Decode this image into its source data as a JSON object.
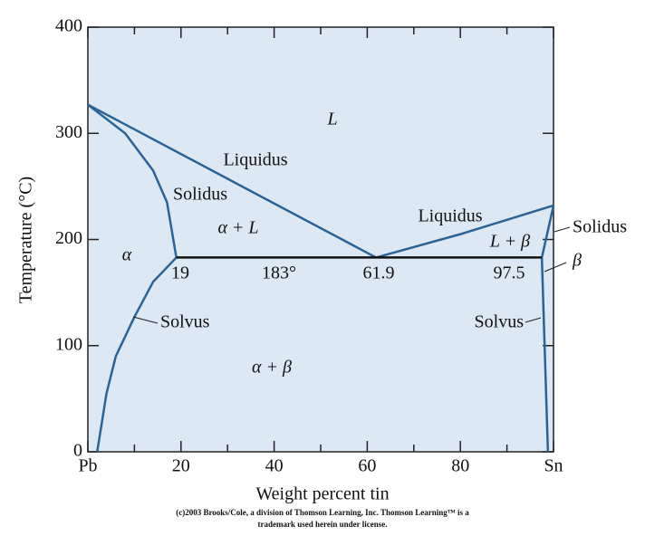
{
  "chart_data": {
    "type": "line",
    "x_label": "Weight percent tin",
    "y_label": "Temperature (°C)",
    "xlim": [
      0,
      100
    ],
    "ylim": [
      0,
      400
    ],
    "xticks": [
      {
        "value": 0,
        "label": "Pb"
      },
      20,
      40,
      60,
      80,
      {
        "value": 100,
        "label": "Sn"
      }
    ],
    "xminorticks": [
      10,
      30,
      50,
      70,
      90
    ],
    "yticks": [
      0,
      100,
      200,
      300,
      400
    ],
    "background": "#dde8f5",
    "series": [
      {
        "name": "Liquidus",
        "color": "#2a6496",
        "x": [
          0,
          61.9,
          80,
          100
        ],
        "values": [
          327,
          183,
          205,
          232
        ]
      },
      {
        "name": "Solidus",
        "color": "#2a6496",
        "x": [
          0,
          8,
          14,
          17,
          19
        ],
        "values": [
          327,
          300,
          265,
          235,
          183
        ]
      },
      {
        "name": "Solidus",
        "color": "#2a6496",
        "x": [
          97.5,
          100
        ],
        "values": [
          183,
          232
        ]
      },
      {
        "name": "Solvus",
        "color": "#2a6496",
        "x": [
          19,
          14,
          10,
          6,
          4,
          2
        ],
        "values": [
          183,
          160,
          127,
          90,
          55,
          0
        ]
      },
      {
        "name": "Solvus",
        "color": "#2a6496",
        "x": [
          97.5,
          98.8
        ],
        "values": [
          183,
          0
        ]
      },
      {
        "color": "#111111",
        "x": [
          19,
          97.5
        ],
        "values": [
          183,
          183
        ]
      }
    ],
    "annotations": [
      "L",
      "α + L",
      "α",
      "19",
      "183°",
      "61.9",
      "97.5",
      "L + β",
      "β",
      "α + β"
    ],
    "footer": [
      "(c)2003 Brooks/Cole, a division of Thomson Learning, Inc.  Thomson Learning™ is a",
      "trademark used herein under license."
    ]
  }
}
